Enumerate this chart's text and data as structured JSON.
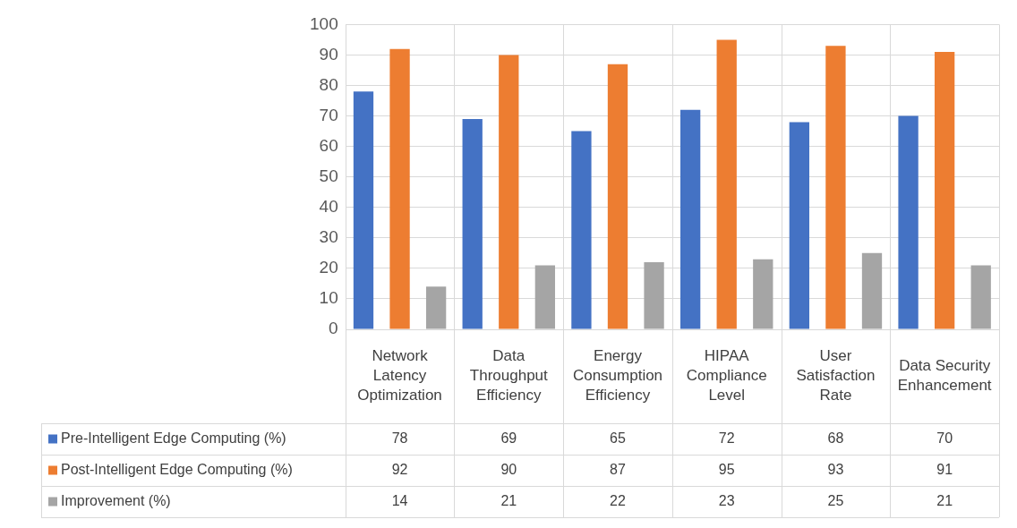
{
  "chart_data": {
    "type": "bar",
    "categories": [
      "Network Latency Optimization",
      "Data Throughput Efficiency",
      "Energy Consumption Efficiency",
      "HIPAA Compliance Level",
      "User Satisfaction Rate",
      "Data Security Enhancement"
    ],
    "series": [
      {
        "name": "Pre-Intelligent Edge Computing (%)",
        "color": "#4472c4",
        "values": [
          78,
          69,
          65,
          72,
          68,
          70
        ]
      },
      {
        "name": "Post-Intelligent Edge Computing (%)",
        "color": "#ed7d31",
        "values": [
          92,
          90,
          87,
          95,
          93,
          91
        ]
      },
      {
        "name": "Improvement (%)",
        "color": "#a5a5a5",
        "values": [
          14,
          21,
          22,
          23,
          25,
          21
        ]
      }
    ],
    "ylim": [
      0,
      100
    ],
    "yticks": [
      0,
      10,
      20,
      30,
      40,
      50,
      60,
      70,
      80,
      90,
      100
    ],
    "grid": true,
    "legend": "bottom",
    "data_labels": true
  }
}
